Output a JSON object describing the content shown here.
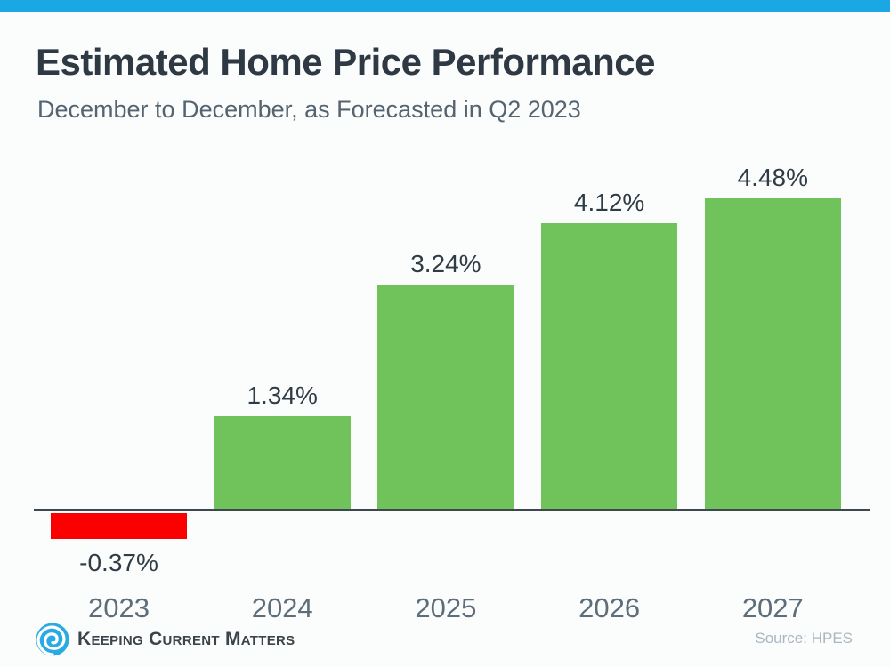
{
  "accent_bar_color": "#1BA7E3",
  "title": "Estimated Home Price Performance",
  "subtitle": "December to December, as Forecasted in Q2 2023",
  "chart_data": {
    "type": "bar",
    "title": "Estimated Home Price Performance",
    "subtitle": "December to December, as Forecasted in Q2 2023",
    "categories": [
      "2023",
      "2024",
      "2025",
      "2026",
      "2027"
    ],
    "values": [
      -0.37,
      1.34,
      3.24,
      4.12,
      4.48
    ],
    "value_labels": [
      "-0.37%",
      "1.34%",
      "3.24%",
      "4.12%",
      "4.48%"
    ],
    "unit": "percent",
    "ylim": [
      -0.6,
      5.0
    ],
    "grid": false,
    "legend": false,
    "value_label_position": "outside-end",
    "colors": {
      "positive_bar": "#70C25B",
      "negative_bar": "#FC0000",
      "axis_line": "#3F474E",
      "value_label_text": "#2F3B45",
      "category_label_text": "#5E6D7A"
    }
  },
  "footer": {
    "logo_text": "Keeping Current Matters",
    "logo_icon": "kcm-swirl-icon",
    "logo_icon_color": "#29ABE2",
    "source_label": "Source: HPES",
    "source_color": "#AAB6C1"
  }
}
